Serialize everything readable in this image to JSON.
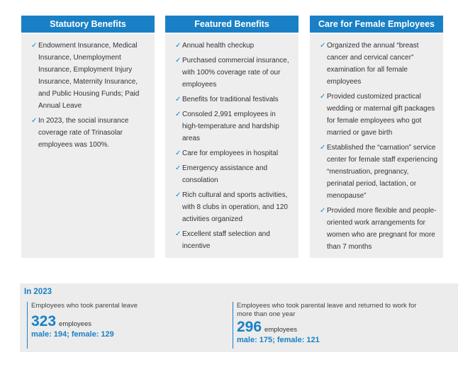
{
  "columns": [
    {
      "title": "Statutory Benefits",
      "items": [
        "Endowment Insurance, Medical Insurance, Unemployment Insurance, Employment Injury Insurance, Maternity Insurance, and Public Housing Funds; Paid Annual Leave",
        "In 2023, the social insurance coverage rate of Trinasolar employees was 100%."
      ]
    },
    {
      "title": "Featured Benefits",
      "items": [
        "Annual health checkup",
        "Purchased commercial insurance, with 100% coverage rate of our employees",
        "Benefits for traditional festivals",
        "Consoled 2,991 employees in high-temperature and hardship areas",
        "Care for employees in hospital",
        "Emergency assistance and consolation",
        "Rich cultural and sports activities, with 8 clubs in operation, and 120 activities organized",
        "Excellent staff selection and incentive"
      ]
    },
    {
      "title": "Care for Female Employees",
      "items": [
        "Organized the annual “breast cancer and cervical cancer” examination for all female employees",
        "Provided customized practical wedding or maternal gift packages for female employees who got married or gave birth",
        "Established the “carnation” service center for female staff experiencing “menstruation, pregnancy, perinatal period, lactation, or menopause”",
        "Provided more flexible and people-oriented work arrangements for women who are pregnant for more than 7 months"
      ]
    }
  ],
  "summary": {
    "title": "In 2023",
    "stats": [
      {
        "label": "Employees who took parental leave",
        "value": 323,
        "unit": "employees",
        "breakdown": "male: 194; female: 129"
      },
      {
        "label": "Employees who took parental leave and returned to work for more than one year",
        "value": 296,
        "unit": "employees",
        "breakdown": "male: 175; female: 121"
      }
    ]
  }
}
